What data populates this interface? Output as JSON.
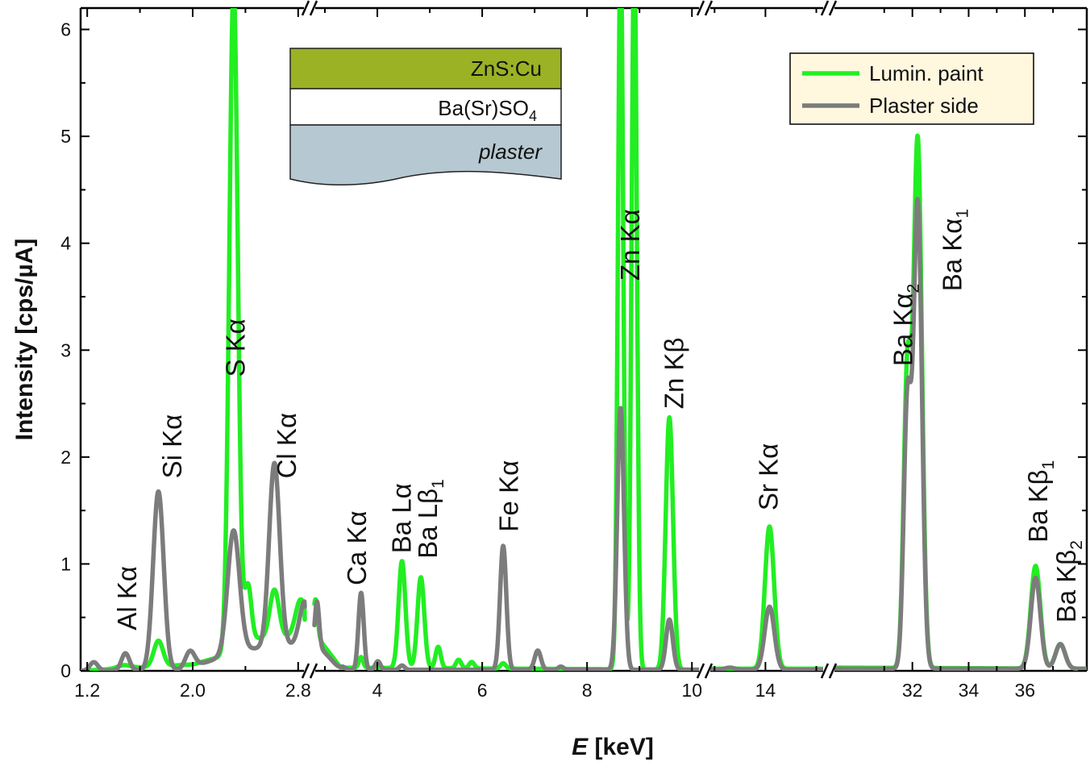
{
  "chart_data": {
    "type": "line",
    "xlabel": {
      "symbol": "E",
      "unit": " [keV]"
    },
    "ylabel": "Intensity [cps/µA]",
    "ylim": [
      0,
      6.2
    ],
    "y_ticks": [
      0,
      1,
      2,
      3,
      4,
      5,
      6
    ],
    "x_broken_axis": true,
    "grid": false,
    "legend_position": "top-right",
    "segments": [
      {
        "xlim": [
          1.15,
          2.85
        ],
        "tick_values": [
          1.2,
          2.0,
          2.8
        ],
        "tick_labels": [
          "1.2",
          "2.0",
          "2.8"
        ],
        "minor": [
          1.6,
          2.4
        ]
      },
      {
        "xlim": [
          2.8,
          10.15
        ],
        "tick_values": [
          4,
          6,
          8,
          10
        ],
        "tick_labels": [
          "4",
          "6",
          "8",
          "10"
        ],
        "minor": [
          3,
          5,
          7,
          9
        ]
      },
      {
        "xlim": [
          11.8,
          16.3
        ],
        "tick_values": [
          14
        ],
        "tick_labels": [
          "14"
        ],
        "minor": [
          12,
          16
        ]
      },
      {
        "xlim": [
          29.2,
          38.2
        ],
        "tick_values": [
          32,
          34,
          36
        ],
        "tick_labels": [
          "32",
          "34",
          "36"
        ],
        "minor": [
          31,
          33,
          35,
          37
        ]
      }
    ],
    "series": [
      {
        "name": "Lumin. paint",
        "color": "#22ee22",
        "peaks": [
          [
            1.48,
            0.03,
            0.05
          ],
          [
            1.74,
            0.24,
            0.035
          ],
          [
            2.31,
            6.2,
            0.032
          ],
          [
            2.42,
            0.5,
            0.025
          ],
          [
            2.62,
            0.45,
            0.035
          ],
          [
            2.82,
            0.35,
            0.04
          ],
          [
            3.69,
            0.1,
            0.04
          ],
          [
            4.47,
            1.0,
            0.065
          ],
          [
            4.83,
            0.85,
            0.065
          ],
          [
            5.16,
            0.2,
            0.05
          ],
          [
            5.55,
            0.08,
            0.05
          ],
          [
            5.8,
            0.06,
            0.05
          ],
          [
            6.4,
            0.05,
            0.05
          ],
          [
            8.64,
            6.8,
            0.05
          ],
          [
            8.9,
            6.8,
            0.05
          ],
          [
            9.57,
            2.36,
            0.07
          ],
          [
            14.16,
            1.33,
            0.18
          ],
          [
            31.82,
            2.75,
            0.13
          ],
          [
            32.19,
            4.93,
            0.15
          ],
          [
            36.38,
            0.96,
            0.17
          ],
          [
            37.26,
            0.23,
            0.17
          ]
        ],
        "baseline": [
          [
            1.15,
            0.0
          ],
          [
            2.0,
            0.06
          ],
          [
            2.26,
            0.15
          ],
          [
            2.4,
            0.3
          ],
          [
            2.85,
            0.32
          ],
          [
            3.3,
            0.03
          ],
          [
            10.2,
            0.01
          ],
          [
            12.0,
            0.02
          ],
          [
            16.3,
            0.02
          ],
          [
            29.2,
            0.03
          ],
          [
            38.2,
            0.02
          ]
        ],
        "pinned": {
          "2.85": 0.48
        }
      },
      {
        "name": "Plaster side",
        "color": "#7c7c7c",
        "peaks": [
          [
            1.25,
            0.08,
            0.03
          ],
          [
            1.49,
            0.16,
            0.03
          ],
          [
            1.74,
            1.67,
            0.04
          ],
          [
            1.98,
            0.15,
            0.035
          ],
          [
            2.31,
            1.15,
            0.045
          ],
          [
            2.62,
            1.72,
            0.04
          ],
          [
            2.85,
            0.4,
            0.04
          ],
          [
            3.33,
            0.03,
            0.05
          ],
          [
            3.69,
            0.72,
            0.05
          ],
          [
            4.01,
            0.08,
            0.05
          ],
          [
            4.47,
            0.04,
            0.05
          ],
          [
            6.4,
            1.16,
            0.06
          ],
          [
            7.06,
            0.18,
            0.06
          ],
          [
            7.5,
            0.03,
            0.05
          ],
          [
            8.64,
            2.45,
            0.065
          ],
          [
            9.57,
            0.47,
            0.065
          ],
          [
            12.6,
            0.02,
            0.2
          ],
          [
            14.16,
            0.59,
            0.19
          ],
          [
            31.82,
            2.45,
            0.13
          ],
          [
            32.19,
            4.35,
            0.15
          ],
          [
            36.38,
            0.85,
            0.17
          ],
          [
            37.26,
            0.23,
            0.17
          ]
        ],
        "baseline": [
          [
            1.15,
            0.0
          ],
          [
            1.9,
            0.01
          ],
          [
            2.1,
            0.08
          ],
          [
            2.4,
            0.2
          ],
          [
            2.85,
            0.25
          ],
          [
            3.3,
            0.01
          ],
          [
            16.3,
            0.01
          ],
          [
            29.2,
            0.02
          ],
          [
            38.2,
            0.02
          ]
        ],
        "pinned": {
          "2.85": 0.6
        }
      }
    ],
    "annotations": [
      {
        "label": "Al Kα",
        "x": 1.5,
        "y": 0.38
      },
      {
        "label": "Si Kα",
        "x": 1.84,
        "y": 1.8
      },
      {
        "label": "S Kα",
        "x": 2.32,
        "y": 2.75
      },
      {
        "label": "Cl Kα",
        "x": 2.71,
        "y": 1.8
      },
      {
        "label": "Ca Kα",
        "x": 3.6,
        "y": 0.8
      },
      {
        "label": "Ba Lα",
        "x": 4.45,
        "y": 1.1
      },
      {
        "label": "Ba Lβ",
        "sub": "1",
        "x": 4.95,
        "y": 1.05
      },
      {
        "label": "Fe Kα",
        "x": 6.5,
        "y": 1.3
      },
      {
        "label": "Zn Kα",
        "x": 8.81,
        "y": 3.65
      },
      {
        "label": "Zn Kβ",
        "x": 9.65,
        "y": 2.45
      },
      {
        "label": "Sr Kα",
        "x": 14.1,
        "y": 1.5
      },
      {
        "label": "Ba Kα",
        "sub": "2",
        "x": 31.65,
        "y": 2.85
      },
      {
        "label": "Ba Kα",
        "sub": "1",
        "x": 33.4,
        "y": 3.55
      },
      {
        "label": "Ba Kβ",
        "sub": "1",
        "x": 36.45,
        "y": 1.2
      },
      {
        "label": "Ba Kβ",
        "sub": "2",
        "x": 37.45,
        "y": 0.45
      }
    ]
  },
  "legend": {
    "items": [
      {
        "label": "Lumin. paint",
        "color": "#22ee22"
      },
      {
        "label": "Plaster side",
        "color": "#7c7c7c"
      }
    ],
    "background": "#fff8df"
  },
  "inset": {
    "layers": [
      {
        "label": "ZnS:Cu",
        "color": "#9ab224"
      },
      {
        "label": "Ba(Sr)SO",
        "sub": "4",
        "color": "#ffffff"
      },
      {
        "label": "plaster",
        "color": "#b6c8d2",
        "italic": true
      }
    ]
  }
}
